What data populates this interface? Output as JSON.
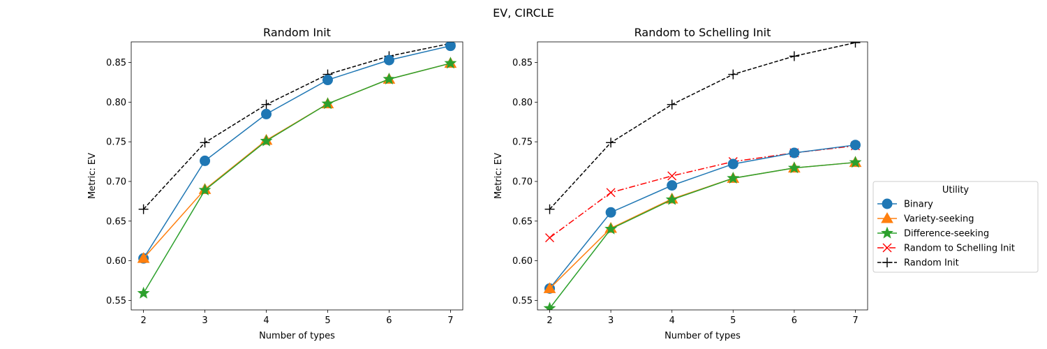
{
  "figure": {
    "suptitle": "EV, CIRCLE"
  },
  "colors": {
    "Binary": "#1f77b4",
    "Variety-seeking": "#ff7f0e",
    "Difference-seeking": "#2ca02c",
    "Random to Schelling Init": "#ff0000",
    "Random Init": "#000000"
  },
  "chart_data": [
    {
      "type": "line",
      "title": "Random Init",
      "xlabel": "Number of types",
      "ylabel": "Metric: EV",
      "x": [
        2,
        3,
        4,
        5,
        6,
        7
      ],
      "xlim": [
        1.8,
        7.2
      ],
      "ylim": [
        0.538,
        0.876
      ],
      "xticks": [
        2,
        3,
        4,
        5,
        6,
        7
      ],
      "yticks": [
        "0.55",
        "0.60",
        "0.65",
        "0.70",
        "0.75",
        "0.80",
        "0.85"
      ],
      "series": [
        {
          "name": "Random Init",
          "marker": "plus",
          "line": "dashed",
          "values": [
            0.665,
            0.749,
            0.797,
            0.835,
            0.858,
            0.874
          ]
        },
        {
          "name": "Binary",
          "marker": "circle",
          "line": "solid",
          "values": [
            0.603,
            0.726,
            0.785,
            0.828,
            0.853,
            0.871
          ]
        },
        {
          "name": "Variety-seeking",
          "marker": "triangle",
          "line": "solid",
          "values": [
            0.603,
            0.69,
            0.752,
            0.798,
            0.829,
            0.849
          ]
        },
        {
          "name": "Difference-seeking",
          "marker": "star",
          "line": "solid",
          "values": [
            0.559,
            0.689,
            0.751,
            0.798,
            0.829,
            0.849
          ]
        }
      ]
    },
    {
      "type": "line",
      "title": "Random to Schelling Init",
      "xlabel": "Number of types",
      "ylabel": "Metric: EV",
      "x": [
        2,
        3,
        4,
        5,
        6,
        7
      ],
      "xlim": [
        1.8,
        7.2
      ],
      "ylim": [
        0.538,
        0.876
      ],
      "xticks": [
        2,
        3,
        4,
        5,
        6,
        7
      ],
      "yticks": [
        "0.55",
        "0.60",
        "0.65",
        "0.70",
        "0.75",
        "0.80",
        "0.85"
      ],
      "legend": {
        "title": "Utility",
        "placement": "outside-right",
        "entries": [
          "Binary",
          "Variety-seeking",
          "Difference-seeking",
          "Random to Schelling Init",
          "Random Init"
        ]
      },
      "series": [
        {
          "name": "Random Init",
          "marker": "plus",
          "line": "dashed",
          "values": [
            0.665,
            0.749,
            0.797,
            0.835,
            0.858,
            0.875
          ]
        },
        {
          "name": "Random to Schelling Init",
          "marker": "x",
          "line": "dashdot",
          "values": [
            0.629,
            0.686,
            0.707,
            0.725,
            0.736,
            0.745
          ]
        },
        {
          "name": "Binary",
          "marker": "circle",
          "line": "solid",
          "values": [
            0.565,
            0.661,
            0.695,
            0.722,
            0.736,
            0.746
          ]
        },
        {
          "name": "Variety-seeking",
          "marker": "triangle",
          "line": "solid",
          "values": [
            0.565,
            0.641,
            0.678,
            0.704,
            0.717,
            0.724
          ]
        },
        {
          "name": "Difference-seeking",
          "marker": "star",
          "line": "solid",
          "values": [
            0.54,
            0.64,
            0.677,
            0.704,
            0.717,
            0.724
          ]
        }
      ]
    }
  ]
}
